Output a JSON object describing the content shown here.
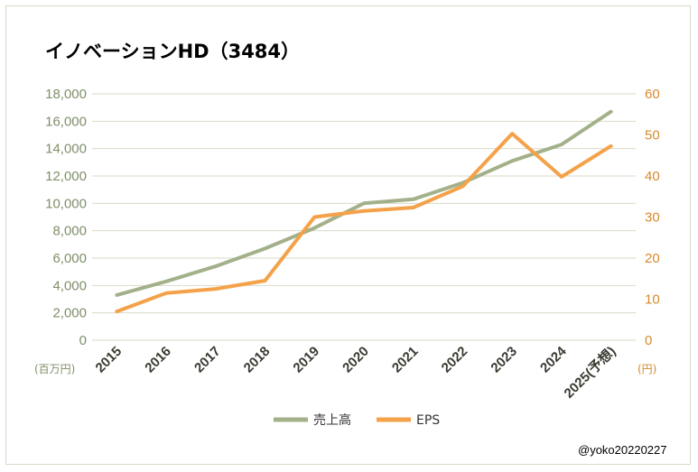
{
  "chart_data": {
    "type": "line",
    "title": "イノベーションHD（3484）",
    "categories": [
      "2015",
      "2016",
      "2017",
      "2018",
      "2019",
      "2020",
      "2021",
      "2022",
      "2023",
      "2024",
      "2025(予想)"
    ],
    "y_left": {
      "label": "(百万円)",
      "range": [
        0,
        18000
      ],
      "ticks": [
        0,
        2000,
        4000,
        6000,
        8000,
        10000,
        12000,
        14000,
        16000,
        18000
      ],
      "tick_labels": [
        "0",
        "2,000",
        "4,000",
        "6,000",
        "8,000",
        "10,000",
        "12,000",
        "14,000",
        "16,000",
        "18,000"
      ]
    },
    "y_right": {
      "label": "(円)",
      "range": [
        0,
        60
      ],
      "ticks": [
        0,
        10,
        20,
        30,
        40,
        50,
        60
      ],
      "tick_labels": [
        "0",
        "10",
        "20",
        "30",
        "40",
        "50",
        "60"
      ]
    },
    "series": [
      {
        "name": "売上高",
        "axis": "left",
        "color": "#a3b18a",
        "values": [
          3300,
          4300,
          5400,
          6700,
          8200,
          10000,
          10300,
          11500,
          13100,
          14300,
          16700
        ]
      },
      {
        "name": "EPS",
        "axis": "right",
        "color": "#f4a24a",
        "values": [
          7,
          11.5,
          12.5,
          14.5,
          30,
          31.5,
          32.3,
          37.5,
          50.3,
          39.8,
          47.3
        ]
      }
    ],
    "grid": true,
    "legend_position": "bottom",
    "gridline_color": "#d9d9c8"
  },
  "credit": "@yoko20220227"
}
